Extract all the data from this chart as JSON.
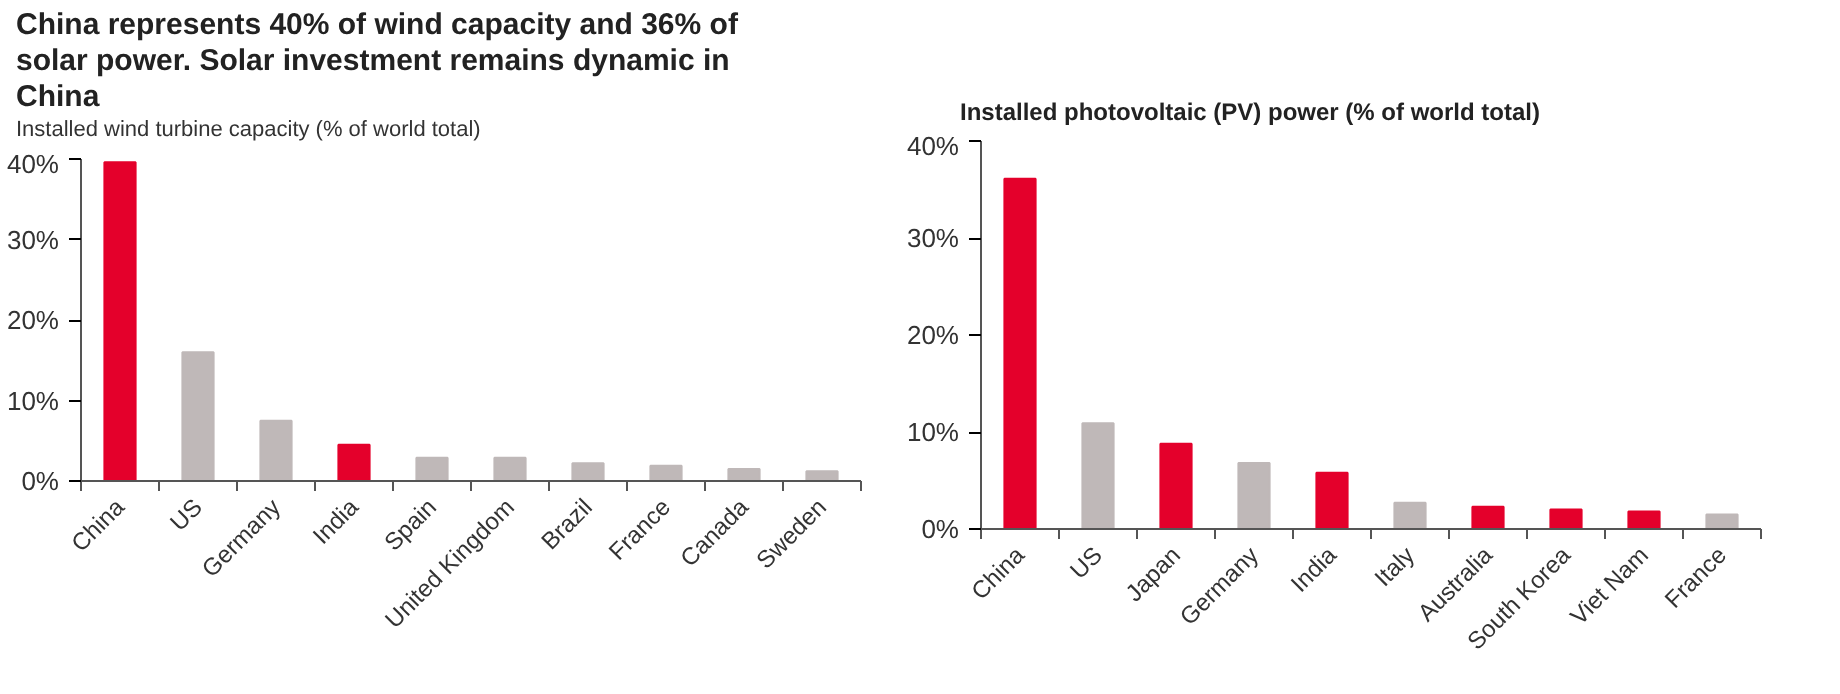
{
  "chart_data": [
    {
      "type": "bar",
      "title": "China represents 40% of wind capacity and 36% of solar power. Solar investment remains dynamic in China",
      "subtitle": "Installed wind turbine capacity (% of world total)",
      "categories": [
        "China",
        "US",
        "Germany",
        "India",
        "Spain",
        "United Kingdom",
        "Brazil",
        "France",
        "Canada",
        "Sweden"
      ],
      "values": [
        39.6,
        16.0,
        7.5,
        4.5,
        2.9,
        2.9,
        2.2,
        1.9,
        1.5,
        1.2
      ],
      "colors": [
        "#e4002b",
        "#bfb8b8",
        "#bfb8b8",
        "#e4002b",
        "#bfb8b8",
        "#bfb8b8",
        "#bfb8b8",
        "#bfb8b8",
        "#bfb8b8",
        "#bfb8b8"
      ],
      "ylim": [
        0,
        40
      ],
      "yticks": [
        {
          "value": 0,
          "label": "0%"
        },
        {
          "value": 10,
          "label": "10%"
        },
        {
          "value": 20,
          "label": "20%"
        },
        {
          "value": 30,
          "label": "30%"
        },
        {
          "value": 40,
          "label": "40%"
        }
      ],
      "grid": false
    },
    {
      "type": "bar",
      "title": "Installed photovoltaic (PV) power (% of world total)",
      "categories": [
        "China",
        "US",
        "Japan",
        "Germany",
        "India",
        "Italy",
        "Australia",
        "South Korea",
        "Viet Nam",
        "France"
      ],
      "values": [
        36.1,
        10.9,
        8.8,
        6.8,
        5.8,
        2.7,
        2.3,
        2.0,
        1.8,
        1.5
      ],
      "colors": [
        "#e4002b",
        "#bfb8b8",
        "#e4002b",
        "#bfb8b8",
        "#e4002b",
        "#bfb8b8",
        "#e4002b",
        "#e4002b",
        "#e4002b",
        "#bfb8b8"
      ],
      "ylim": [
        0,
        40
      ],
      "yticks": [
        {
          "value": 0,
          "label": "0%"
        },
        {
          "value": 10,
          "label": "10%"
        },
        {
          "value": 20,
          "label": "20%"
        },
        {
          "value": 30,
          "label": "30%"
        },
        {
          "value": 40,
          "label": "40%"
        }
      ],
      "grid": false
    }
  ]
}
